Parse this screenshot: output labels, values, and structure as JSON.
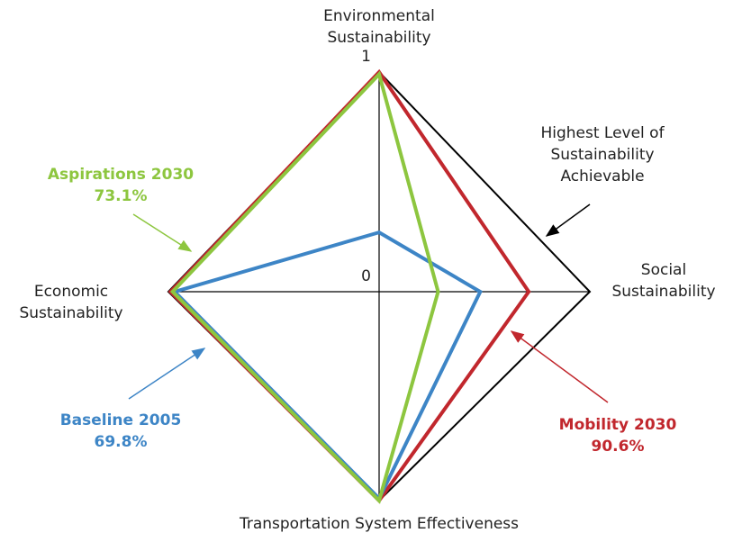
{
  "chart_data": {
    "type": "radar",
    "axes": [
      "Environmental Sustainability",
      "Social Sustainability",
      "Transportation System Effectiveness",
      "Economic Sustainability"
    ],
    "rlim": [
      0,
      1
    ],
    "rticks": [
      0,
      1
    ],
    "series": [
      {
        "name": "Highest Level of Sustainability Achievable",
        "color": "#000000",
        "values": [
          1,
          1,
          1,
          1
        ]
      },
      {
        "name": "Mobility 2030",
        "color": "#c1272d",
        "values": [
          1,
          0.71,
          1,
          0.99
        ],
        "score": {
          "value": 90.6,
          "label": "90.6%"
        }
      },
      {
        "name": "Baseline 2005",
        "color": "#3d85c6",
        "values": [
          0.27,
          0.48,
          0.99,
          0.97
        ],
        "score": {
          "value": 69.8,
          "label": "69.8%"
        }
      },
      {
        "name": "Aspirations 2030",
        "color": "#8dc63f",
        "values": [
          0.99,
          0.28,
          1,
          0.98
        ],
        "score": {
          "value": 73.1,
          "label": "73.1%"
        }
      }
    ]
  }
}
